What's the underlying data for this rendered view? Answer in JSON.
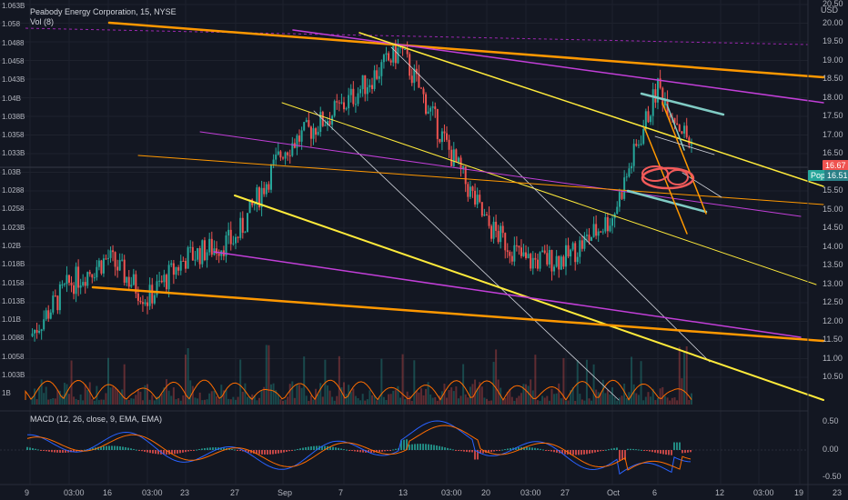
{
  "header": {
    "symbol_line": "Peabody Energy Corporation, 15, NYSE",
    "vol_line": "Vol (8)"
  },
  "macd_label": "MACD (12, 26, close, 9, EMA, EMA)",
  "price_axis": {
    "unit": "USD",
    "ticks": [
      "20.50",
      "20.00",
      "19.50",
      "19.00",
      "18.50",
      "18.00",
      "17.50",
      "17.00",
      "16.50",
      "16.00",
      "15.50",
      "15.00",
      "14.50",
      "14.00",
      "13.50",
      "13.00",
      "12.50",
      "12.00",
      "11.50",
      "11.00",
      "10.50"
    ]
  },
  "volume_axis_ticks": [
    "1.063B",
    "1.058",
    "1.0488",
    "1.0458",
    "1.043B",
    "1.04B",
    "1.038B",
    "1.0358",
    "1.033B",
    "1.03B",
    "1.0288",
    "1.0258",
    "1.023B",
    "1.02B",
    "1.018B",
    "1.0158",
    "1.013B",
    "1.01B",
    "1.0088",
    "1.0058",
    "1.003B",
    "1B"
  ],
  "macd_axis_ticks": [
    "0.50",
    "0.00",
    "-0.50"
  ],
  "price_tags": {
    "last": "16.67",
    "popt_label": "Popt",
    "popt_value": "16.51"
  },
  "time_axis": [
    "9",
    "03:00",
    "16",
    "03:00",
    "23",
    "27",
    "Sep",
    "7",
    "13",
    "03:00",
    "20",
    "03:00",
    "27",
    "Oct",
    "6",
    "12",
    "03:00",
    "19",
    "23"
  ],
  "colors": {
    "background": "#131722",
    "up_candle": "#26a69a",
    "down_candle": "#ef5350",
    "trend_orange": "#ff9800",
    "trend_yellow": "#ffeb3b",
    "trend_magenta": "#c23fd8",
    "trend_white": "#d1d4dc",
    "teal_mark": "#80cbc4",
    "ellipse_red": "#f25a5a",
    "macd_line": "#2962ff",
    "signal_line": "#ff6d00"
  },
  "chart_data": {
    "type": "candlestick",
    "title": "Peabody Energy Corporation, 15, NYSE",
    "y_unit": "USD",
    "ylim": [
      10.2,
      20.8
    ],
    "price_path": [
      {
        "x": "9",
        "y": 11.6
      },
      {
        "x": "03:00",
        "y": 13.0
      },
      {
        "x": "16",
        "y": 13.7
      },
      {
        "x": "03:00",
        "y": 12.6
      },
      {
        "x": "23",
        "y": 13.7
      },
      {
        "x": "27",
        "y": 14.2
      },
      {
        "x": "Sep",
        "y": 16.6
      },
      {
        "x": "7",
        "y": 17.8
      },
      {
        "x": "13",
        "y": 19.3
      },
      {
        "x": "03:00",
        "y": 16.7
      },
      {
        "x": "20",
        "y": 14.6
      },
      {
        "x": "03:00",
        "y": 13.6
      },
      {
        "x": "27",
        "y": 13.7
      },
      {
        "x": "Oct",
        "y": 14.8
      },
      {
        "x": "6",
        "y": 18.3
      },
      {
        "x": "6",
        "y": 16.7
      }
    ],
    "last_price": 16.67,
    "popt_price": 16.51,
    "macd": {
      "ylim": [
        -0.6,
        0.6
      ]
    },
    "grid": true
  }
}
